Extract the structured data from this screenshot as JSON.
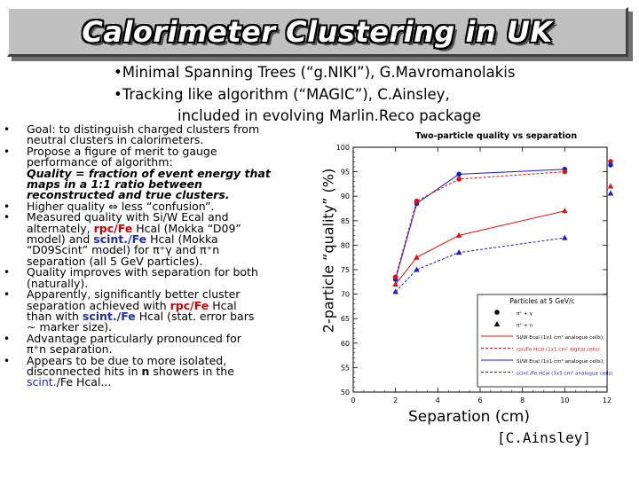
{
  "title": "Calorimeter Clustering in UK",
  "subheader": {
    "line1": "•Minimal Spanning Trees (“g.NIKI”), G.Mavromanolakis",
    "line2": "•Tracking like algorithm (“MAGIC”), C.Ainsley,",
    "line3": "included in evolving Marlin.Reco package"
  },
  "bullets": [
    {
      "lines": [
        "Goal: to distinguish charged clusters from",
        "neutral clusters in calorimeters."
      ]
    },
    {
      "lines": [
        "Propose a figure of merit to gauge",
        "performance of algorithm:"
      ],
      "note": [
        "Quality = fraction of event energy that",
        "maps in a 1:1 ratio between",
        "reconstructed and true clusters."
      ]
    },
    {
      "lines": [
        "Higher quality ⇔ less “confusion”."
      ]
    },
    {
      "lines_pre": "Measured quality with Si/W Ecal and",
      "lines_mid_pre": "alternately, ",
      "red1": "rpc/Fe",
      "mid1": " Hcal (Mokka “D09”",
      "line3": "model) and ",
      "blue1": "scint./Fe",
      "mid2": " Hcal (Mokka",
      "line4": "“D09Scint” model) for π⁺γ and π⁺n",
      "line5": "separation (all 5 GeV particles)."
    },
    {
      "lines": [
        "Quality improves with separation for both",
        "(naturally)."
      ]
    },
    {
      "l1": "Apparently, significantly better cluster",
      "l2_pre": "separation achieved with ",
      "red": "rpc/Fe",
      "l2_post": " Hcal",
      "l3_pre": "than with ",
      "blue": "scint./Fe",
      "l3_post": " Hcal (stat. error bars",
      "l4": "~ marker size)."
    },
    {
      "lines": [
        "Advantage particularly pronounced for",
        "π⁺n separation."
      ]
    },
    {
      "l1": "Appears to be due to more isolated,",
      "l2_pre": "disconnected hits in ",
      "bold": "n",
      "l2_post": " showers in the",
      "blue": "scint.",
      "l3_post": "/Fe Hcal..."
    }
  ],
  "bullet_symbol": "•",
  "axis_labels": {
    "y": "2-particle “quality” (%)",
    "x": "Separation (cm)",
    "credit": "[C.Ainsley]"
  },
  "chart_data": {
    "type": "line",
    "title": "Two-particle quality vs separation",
    "xlim": [
      0,
      12
    ],
    "ylim": [
      50,
      100
    ],
    "x_ticks": [
      0,
      2,
      4,
      6,
      8,
      10,
      12
    ],
    "y_ticks": [
      50,
      55,
      60,
      65,
      70,
      75,
      80,
      85,
      90,
      95,
      100
    ],
    "series": [
      {
        "color": "#1a1ad0",
        "marker": "circle",
        "dash": "solid",
        "x": [
          2,
          3,
          5,
          10
        ],
        "y": [
          73,
          88.5,
          94.5,
          95.5
        ]
      },
      {
        "color": "#e01010",
        "marker": "circle",
        "dash": "dash",
        "x": [
          2,
          3,
          5,
          10
        ],
        "y": [
          73.5,
          89,
          93.5,
          95
        ]
      },
      {
        "color": "#e01010",
        "marker": "triangle",
        "dash": "solid",
        "x": [
          2,
          3,
          5,
          10
        ],
        "y": [
          72,
          77.5,
          82,
          87
        ]
      },
      {
        "color": "#1a1ad0",
        "marker": "triangle",
        "dash": "dash",
        "x": [
          2,
          3,
          5,
          10
        ],
        "y": [
          70.5,
          75,
          78.5,
          81.5
        ]
      }
    ],
    "legend": {
      "title": "Particles at 5 GeV/c",
      "placement": "bottom-right",
      "entries": [
        {
          "text": "π⁺ + γ",
          "marker": "circle",
          "color": "#000000"
        },
        {
          "text": "π⁺ + n",
          "marker": "triangle",
          "color": "#000000"
        },
        {
          "text": "Si/W Ecal (1x1 cm² analogue cells);",
          "line_color": "#e01010",
          "dash": "solid"
        },
        {
          "text": "rpc/Fe Hcal (1x1 cm² digital cells)",
          "line_color": "#e01010",
          "dash": "dash"
        },
        {
          "text": "Si/W Ecal (1x1 cm² analogue cells);",
          "line_color": "#1a1ad0",
          "dash": "solid"
        },
        {
          "text": "scint./Fe Hcal (3x3 cm² analogue cells)",
          "line_color": "#1a1ad0",
          "dash": "dash"
        }
      ]
    },
    "side_markers": [
      {
        "marker": "circle",
        "color": "#e01010"
      },
      {
        "marker": "circle",
        "color": "#1a1ad0"
      },
      {
        "marker": "triangle",
        "color": "#e01010"
      },
      {
        "marker": "triangle",
        "color": "#1a1ad0"
      }
    ]
  }
}
